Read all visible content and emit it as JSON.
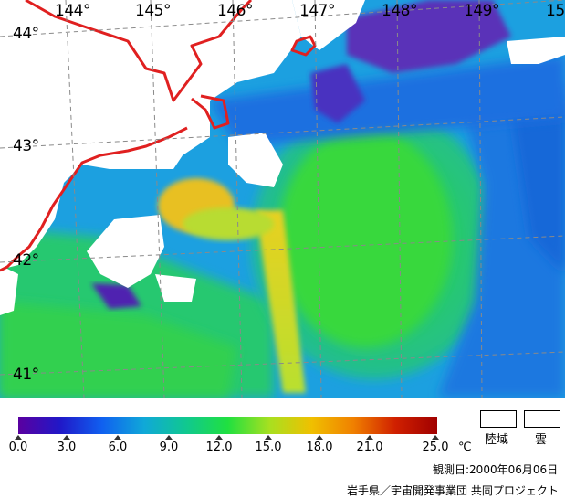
{
  "longitude_labels": [
    "144°",
    "145°",
    "146°",
    "147°",
    "148°",
    "149°",
    "15"
  ],
  "latitude_labels": [
    "44°",
    "43°",
    "42°",
    "41°"
  ],
  "colorbar": {
    "ticks": [
      "0.0",
      "3.0",
      "6.0",
      "9.0",
      "12.0",
      "15.0",
      "18.0",
      "21.0",
      "25.0"
    ],
    "unit": "℃",
    "colors": [
      "#5a00a0",
      "#2018c8",
      "#1060f0",
      "#10a8d8",
      "#10c890",
      "#20e040",
      "#a8e020",
      "#f0c000",
      "#f08000",
      "#d02000",
      "#a00000"
    ]
  },
  "legend": {
    "land_label": "陸域",
    "cloud_label": "雲"
  },
  "observation_date": "観測日:2000年06月06日",
  "credit": "岩手県／宇宙開発事業団 共同プロジェクト",
  "map": {
    "coastline_color": "#e02020",
    "cloud_color": "#ffffff"
  }
}
